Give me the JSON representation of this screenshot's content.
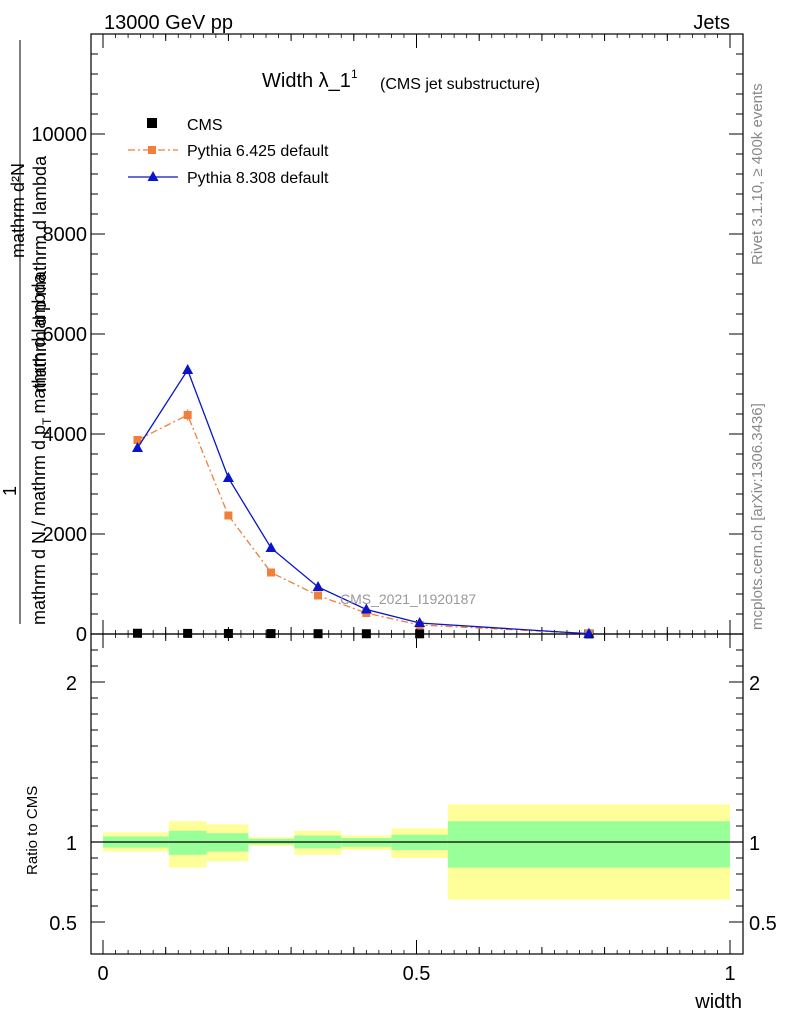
{
  "header": {
    "left": "13000 GeV pp",
    "right": "Jets"
  },
  "side_labels": {
    "rivet": "Rivet 3.1.10, ≥ 400k events",
    "mcplots": "mcplots.cern.ch [arXiv:1306.3436]"
  },
  "watermark": "CMS_2021_I1920187",
  "chart_data": [
    {
      "type": "line",
      "title": "Width λ_1",
      "title_sup": "1",
      "subtitle": "(CMS jet substructure)",
      "ylabel_num": "1",
      "ylabel_den": "mathrm d N / mathrm d p",
      "ylabel_den_sub": "T",
      "ylabel_den_tail": "mathrm d lambda",
      "ylabel_top": "mathrm d²N",
      "xlim": [
        0,
        1
      ],
      "ylim": [
        0,
        12000
      ],
      "yticks": [
        0,
        2000,
        4000,
        6000,
        8000,
        10000
      ],
      "ytick_labels": [
        "0",
        "2000",
        "4000",
        "6000",
        "8000",
        "10000"
      ],
      "legend_position": "top-left",
      "series": [
        {
          "name": "CMS",
          "color": "#000000",
          "marker": "square",
          "x": [
            0.055,
            0.135,
            0.2,
            0.268,
            0.343,
            0.42,
            0.505,
            0.775
          ],
          "y": [
            15,
            12,
            10,
            8,
            6,
            5,
            4,
            2
          ]
        },
        {
          "name": "Pythia 6.425 default",
          "color": "#f07f3a",
          "marker": "square",
          "line": "dashdot",
          "x": [
            0.055,
            0.135,
            0.2,
            0.268,
            0.343,
            0.42,
            0.505,
            0.775
          ],
          "y": [
            3880,
            4380,
            2370,
            1230,
            770,
            420,
            180,
            10
          ],
          "yerr": [
            60,
            110,
            80,
            50,
            40,
            30,
            20,
            5
          ]
        },
        {
          "name": "Pythia 8.308 default",
          "color": "#0a14c8",
          "marker": "triangle",
          "line": "solid",
          "x": [
            0.055,
            0.135,
            0.2,
            0.268,
            0.343,
            0.42,
            0.505,
            0.775
          ],
          "y": [
            3720,
            5280,
            3120,
            1720,
            940,
            490,
            220,
            5
          ]
        }
      ]
    },
    {
      "type": "area",
      "ylabel": "Ratio to CMS",
      "xlabel": "width",
      "xlim": [
        0,
        1
      ],
      "ylim": [
        0.3,
        2.3
      ],
      "yticks": [
        0.5,
        1,
        2
      ],
      "ytick_labels": [
        "0.5",
        "1",
        "2"
      ],
      "xticks": [
        0,
        0.5,
        1
      ],
      "xtick_labels": [
        "0",
        "0.5",
        "1"
      ],
      "reference_line": 1,
      "bands": [
        {
          "x0": 0.0,
          "x1": 0.105,
          "outer": [
            0.94,
            1.06
          ],
          "inner": [
            0.965,
            1.035
          ]
        },
        {
          "x0": 0.105,
          "x1": 0.165,
          "outer": [
            0.84,
            1.13
          ],
          "inner": [
            0.92,
            1.07
          ]
        },
        {
          "x0": 0.165,
          "x1": 0.232,
          "outer": [
            0.88,
            1.11
          ],
          "inner": [
            0.94,
            1.055
          ]
        },
        {
          "x0": 0.232,
          "x1": 0.305,
          "outer": [
            0.975,
            1.03
          ],
          "inner": [
            0.985,
            1.02
          ]
        },
        {
          "x0": 0.305,
          "x1": 0.38,
          "outer": [
            0.92,
            1.07
          ],
          "inner": [
            0.96,
            1.04
          ]
        },
        {
          "x0": 0.38,
          "x1": 0.46,
          "outer": [
            0.95,
            1.04
          ],
          "inner": [
            0.97,
            1.025
          ]
        },
        {
          "x0": 0.46,
          "x1": 0.55,
          "outer": [
            0.9,
            1.085
          ],
          "inner": [
            0.95,
            1.045
          ]
        },
        {
          "x0": 0.55,
          "x1": 1.0,
          "outer": [
            0.64,
            1.235
          ],
          "inner": [
            0.84,
            1.13
          ]
        }
      ],
      "colors": {
        "outer": "#ffff99",
        "inner": "#99ff99"
      }
    }
  ]
}
